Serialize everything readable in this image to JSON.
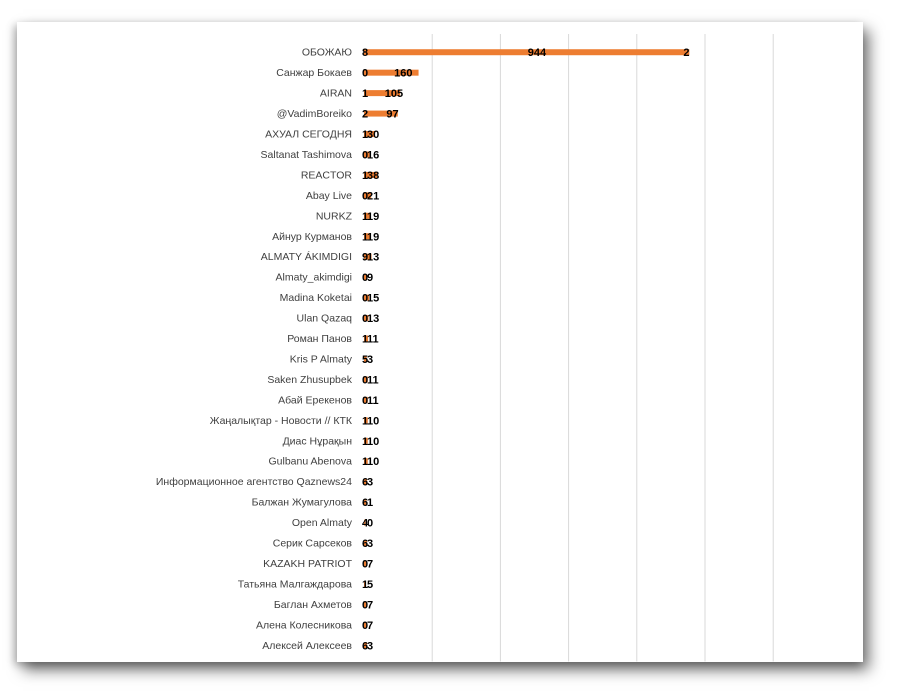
{
  "chart_data": {
    "type": "bar",
    "orientation": "horizontal",
    "title": "",
    "xlabel": "",
    "ylabel": "",
    "categories": [
      "ОБОЖАЮ",
      "Санжар Бокаев",
      "AIRAN",
      "@VadimBoreiko",
      "АХУАЛ СЕГОДНЯ",
      "Saltanat Tashimova",
      "REACTOR",
      "Abay Live",
      "NURKZ",
      "Айнур Курманов",
      "ALMATY ÁKIMDIGI",
      "Almaty_akimdigi",
      "Madina Koketai",
      "Ulan Qazaq",
      "Роман Панов",
      "Kris P Almaty",
      "Saken Zhusupbek",
      "Абай Ерекенов",
      "Жаңалықтар - Новости  //  КТК",
      "Диас Нұрақын",
      "Gulbanu Abenova",
      "Информационное агентство Qaznews24",
      "Балжан Жумагулова",
      "Open Almaty",
      "Серик Сарсеков",
      "KAZAKH PATRIOT",
      "Татьяна Малгаждарова",
      "Баглан Ахметов",
      "Алена Колесникова",
      "Алексей Алексеев"
    ],
    "series": [
      {
        "values": [
          8,
          0,
          1,
          2,
          1,
          0,
          1,
          0,
          1,
          1,
          9,
          0,
          0,
          0,
          1,
          5,
          0,
          0,
          1,
          1,
          1,
          6,
          6,
          4,
          6,
          0,
          1,
          0,
          0,
          6
        ]
      },
      {
        "values": [
          944,
          160,
          105,
          97,
          30,
          16,
          38,
          21,
          19,
          19,
          13,
          9,
          15,
          13,
          11,
          3,
          11,
          11,
          10,
          10,
          10,
          3,
          1,
          0,
          3,
          7,
          5,
          7,
          7,
          3
        ]
      },
      {
        "values": [
          2,
          null,
          null,
          null,
          null,
          null,
          null,
          null,
          null,
          null,
          null,
          null,
          null,
          null,
          null,
          null,
          null,
          null,
          null,
          null,
          null,
          null,
          null,
          null,
          null,
          null,
          null,
          null,
          null,
          null
        ]
      }
    ],
    "xlim": [
      0,
      1200
    ],
    "tick_step": 200,
    "grid": true,
    "bar_color": "#ed7d31",
    "grid_color": "#d9d9d9"
  }
}
